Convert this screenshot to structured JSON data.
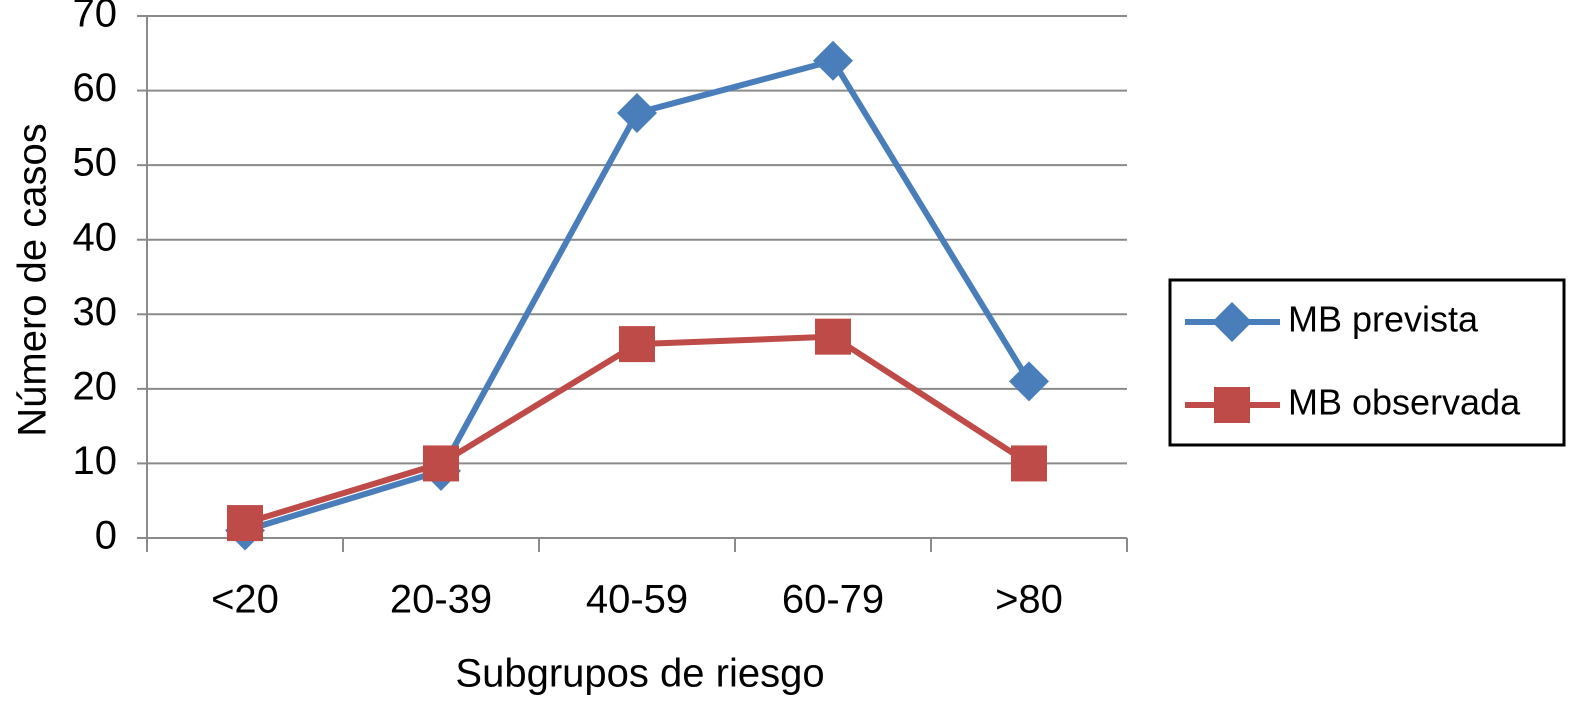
{
  "chart_data": {
    "type": "line",
    "x_label": "Subgrupos de riesgo",
    "y_label": "Número de casos",
    "categories": [
      "<20",
      "20-39",
      "40-59",
      "60-79",
      ">80"
    ],
    "series": [
      {
        "name": "MB prevista",
        "color": "#4a7ebb",
        "marker": "diamond",
        "values": [
          1,
          9,
          57,
          64,
          21
        ]
      },
      {
        "name": "MB observada",
        "color": "#be4b48",
        "marker": "square",
        "values": [
          2,
          10,
          26,
          27,
          10
        ]
      }
    ],
    "ylim": [
      0,
      70
    ],
    "yticks": [
      0,
      10,
      20,
      30,
      40,
      50,
      60,
      70
    ],
    "grid": true,
    "legend": "right"
  }
}
